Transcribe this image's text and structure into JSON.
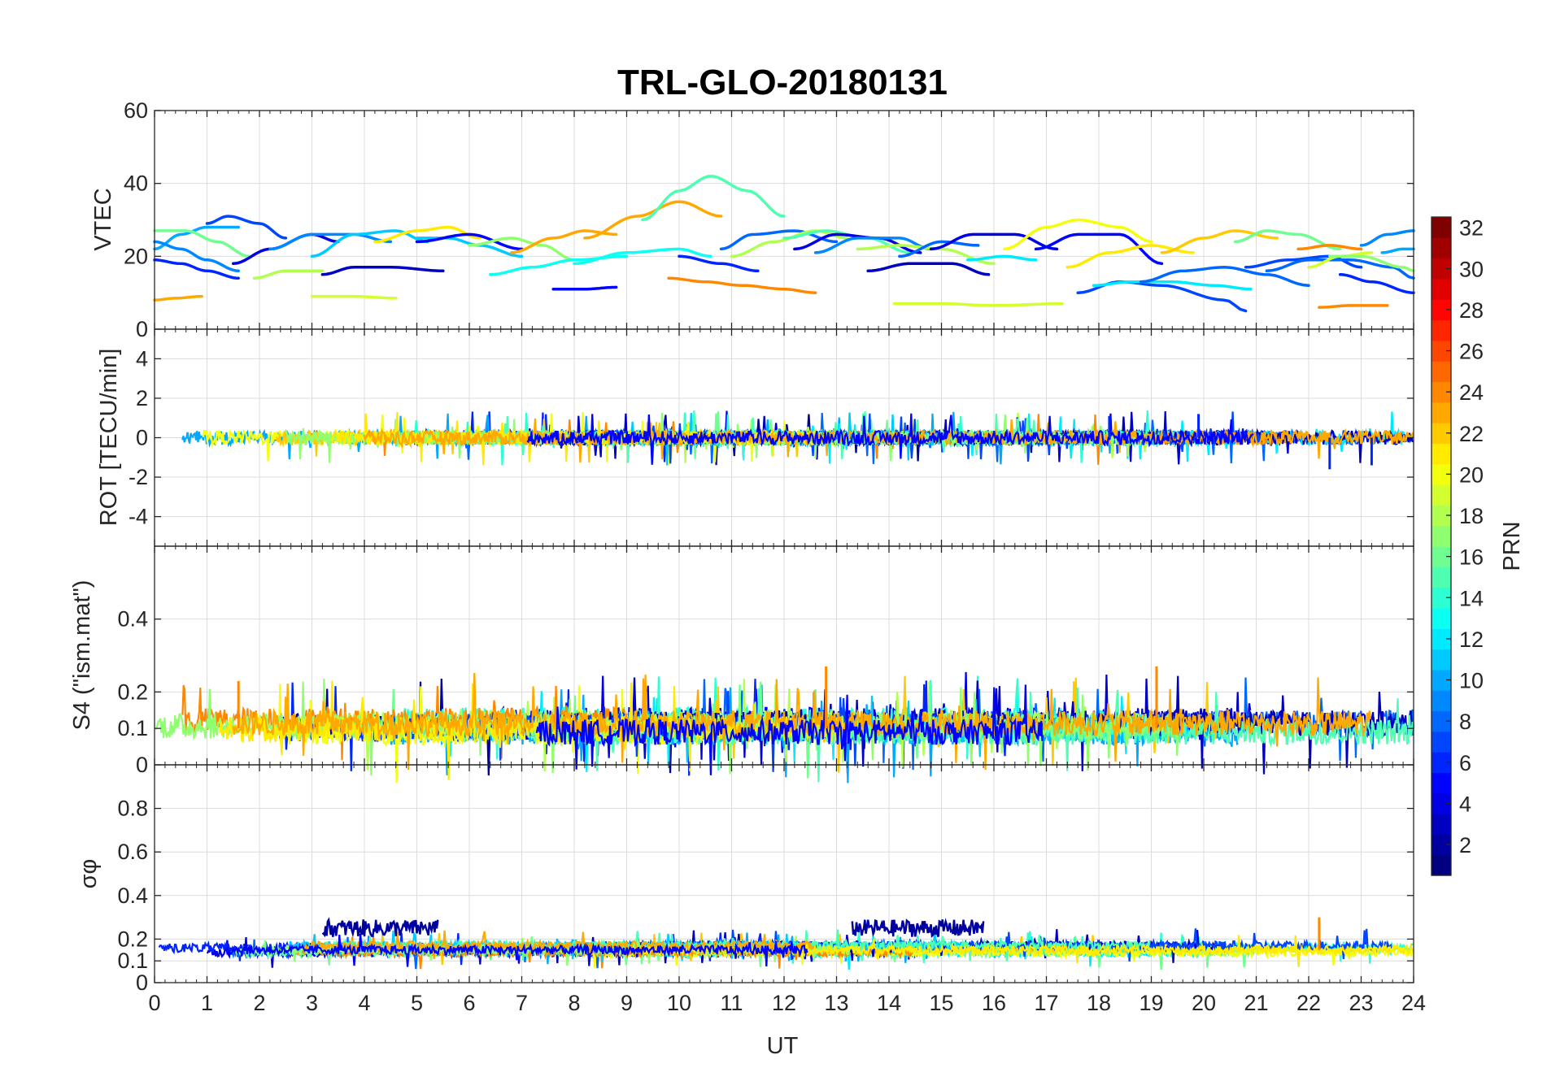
{
  "chart_data": {
    "type": "line",
    "title": "TRL-GLO-20180131",
    "xlabel": "UT",
    "x_ticks": [
      "0",
      "1",
      "2",
      "3",
      "4",
      "5",
      "6",
      "7",
      "8",
      "9",
      "10",
      "11",
      "12",
      "13",
      "14",
      "15",
      "16",
      "17",
      "18",
      "19",
      "20",
      "21",
      "22",
      "23",
      "24"
    ],
    "xlim": [
      0,
      24
    ],
    "panels": [
      {
        "id": "vtec",
        "ylabel": "VTEC",
        "ylim": [
          0,
          60
        ],
        "yticks": [
          "0",
          "20",
          "40",
          "60"
        ],
        "ytick_values": [
          0,
          20,
          40,
          60
        ]
      },
      {
        "id": "rot",
        "ylabel": "ROT [TECU/min]",
        "ylim": [
          -5.5,
          5.5
        ],
        "yticks": [
          "-4",
          "-2",
          "0",
          "2",
          "4"
        ],
        "ytick_values": [
          -4,
          -2,
          0,
          2,
          4
        ]
      },
      {
        "id": "s4",
        "ylabel": "S4 (\"ism.mat\")",
        "ylim": [
          0,
          0.6
        ],
        "yticks": [
          "0",
          "0.1",
          "0.2",
          "0.4"
        ],
        "ytick_values": [
          0,
          0.1,
          0.2,
          0.4
        ]
      },
      {
        "id": "sigma",
        "ylabel": "σφ",
        "ylim": [
          0,
          1
        ],
        "yticks": [
          "0",
          "0.1",
          "0.2",
          "0.4",
          "0.6",
          "0.8"
        ],
        "ytick_values": [
          0,
          0.1,
          0.2,
          0.4,
          0.6,
          0.8
        ]
      }
    ],
    "colorbar": {
      "label": "PRN",
      "range": [
        1,
        32
      ],
      "ticks": [
        "2",
        "4",
        "6",
        "8",
        "10",
        "12",
        "14",
        "16",
        "18",
        "20",
        "22",
        "24",
        "26",
        "28",
        "30",
        "32"
      ],
      "colormap": "jet"
    },
    "vtec_series": [
      {
        "prn": 7,
        "x": [
          1.0,
          1.4,
          2.0,
          2.5
        ],
        "y": [
          29,
          31,
          29,
          25
        ]
      },
      {
        "prn": 10,
        "x": [
          0,
          0.5,
          1.0,
          1.6
        ],
        "y": [
          22,
          26,
          28,
          28
        ]
      },
      {
        "prn": 16,
        "x": [
          0,
          0.6,
          1.2,
          1.8
        ],
        "y": [
          27,
          27,
          24,
          20
        ]
      },
      {
        "prn": 9,
        "x": [
          0,
          0.5,
          1.0,
          1.6
        ],
        "y": [
          24,
          22,
          19,
          16
        ]
      },
      {
        "prn": 6,
        "x": [
          0,
          0.5,
          1.0,
          1.6
        ],
        "y": [
          19,
          18,
          16,
          14
        ]
      },
      {
        "prn": 23,
        "x": [
          0,
          0.4,
          0.9
        ],
        "y": [
          8,
          8.5,
          9
        ]
      },
      {
        "prn": 4,
        "x": [
          1.5,
          2.2,
          3.0,
          3.5
        ],
        "y": [
          18,
          22,
          26,
          24
        ]
      },
      {
        "prn": 9,
        "x": [
          2.2,
          3.0,
          3.8,
          4.5
        ],
        "y": [
          22,
          26,
          26,
          24
        ]
      },
      {
        "prn": 18,
        "x": [
          1.9,
          2.5,
          3.2
        ],
        "y": [
          14,
          16,
          16
        ]
      },
      {
        "prn": 19,
        "x": [
          3.0,
          3.8,
          4.6
        ],
        "y": [
          9,
          9,
          8.5
        ]
      },
      {
        "prn": 3,
        "x": [
          3.2,
          3.8,
          4.5,
          5.5
        ],
        "y": [
          15,
          17,
          17,
          16
        ]
      },
      {
        "prn": 11,
        "x": [
          3.0,
          3.8,
          4.6,
          5.2
        ],
        "y": [
          20,
          26,
          27,
          24
        ]
      },
      {
        "prn": 21,
        "x": [
          4.2,
          5.0,
          5.6,
          6.2
        ],
        "y": [
          24,
          27,
          28,
          25
        ]
      },
      {
        "prn": 11,
        "x": [
          5.0,
          5.6,
          6.2,
          7.0
        ],
        "y": [
          25,
          25,
          23,
          20
        ]
      },
      {
        "prn": 5,
        "x": [
          5.0,
          6.0,
          7.0
        ],
        "y": [
          24,
          26,
          22
        ]
      },
      {
        "prn": 17,
        "x": [
          6.0,
          6.8,
          7.4,
          8.0
        ],
        "y": [
          23,
          25,
          23,
          19
        ]
      },
      {
        "prn": 13,
        "x": [
          6.4,
          7.2,
          8.0,
          9.0
        ],
        "y": [
          15,
          17,
          19,
          20
        ]
      },
      {
        "prn": 23,
        "x": [
          6.8,
          7.6,
          8.2,
          8.8
        ],
        "y": [
          21,
          25,
          27,
          26
        ]
      },
      {
        "prn": 5,
        "x": [
          7.6,
          8.2,
          8.8
        ],
        "y": [
          11,
          11,
          11.5
        ]
      },
      {
        "prn": 13,
        "x": [
          8.0,
          9.0,
          10.0,
          10.6
        ],
        "y": [
          18,
          21,
          22,
          20
        ]
      },
      {
        "prn": 23,
        "x": [
          8.2,
          9.2,
          10.0,
          10.8
        ],
        "y": [
          25,
          31,
          35,
          31
        ]
      },
      {
        "prn": 15,
        "x": [
          9.3,
          10.0,
          10.6,
          11.3,
          12.0
        ],
        "y": [
          30,
          38,
          42,
          38,
          31
        ]
      },
      {
        "prn": 24,
        "x": [
          9.8,
          10.5,
          11.2,
          12.0,
          12.6
        ],
        "y": [
          14,
          13,
          12,
          11,
          10
        ]
      },
      {
        "prn": 8,
        "x": [
          10.8,
          11.4,
          12.2,
          13.0
        ],
        "y": [
          22,
          26,
          27,
          24
        ]
      },
      {
        "prn": 18,
        "x": [
          11.0,
          11.8,
          12.6,
          13.2
        ],
        "y": [
          20,
          24,
          27,
          25
        ]
      },
      {
        "prn": 6,
        "x": [
          10.0,
          10.8,
          11.5
        ],
        "y": [
          20,
          18,
          16
        ]
      },
      {
        "prn": 15,
        "x": [
          12.0,
          12.8,
          13.6,
          14.4
        ],
        "y": [
          25,
          27,
          25,
          21
        ]
      },
      {
        "prn": 4,
        "x": [
          12.2,
          13.0,
          13.8,
          14.6
        ],
        "y": [
          22,
          26,
          25,
          21
        ]
      },
      {
        "prn": 9,
        "x": [
          12.6,
          13.4,
          14.2,
          14.8
        ],
        "y": [
          21,
          25,
          25,
          22
        ]
      },
      {
        "prn": 3,
        "x": [
          13.6,
          14.4,
          15.2,
          15.9
        ],
        "y": [
          16,
          18,
          18,
          15
        ]
      },
      {
        "prn": 18,
        "x": [
          13.4,
          14.2,
          15.0,
          16.0
        ],
        "y": [
          22,
          23,
          22,
          18
        ]
      },
      {
        "prn": 19,
        "x": [
          14.1,
          15.0,
          16.0,
          17.3
        ],
        "y": [
          7,
          7,
          6.5,
          7
        ]
      },
      {
        "prn": 8,
        "x": [
          14.2,
          15.0,
          15.7
        ],
        "y": [
          20,
          24,
          23
        ]
      },
      {
        "prn": 4,
        "x": [
          14.8,
          15.6,
          16.4,
          17.2
        ],
        "y": [
          22,
          26,
          26,
          22
        ]
      },
      {
        "prn": 12,
        "x": [
          15.5,
          16.2,
          16.8
        ],
        "y": [
          19,
          20,
          19
        ]
      },
      {
        "prn": 20,
        "x": [
          16.2,
          17.0,
          17.6,
          18.4,
          19.0
        ],
        "y": [
          22,
          28,
          30,
          28,
          24
        ]
      },
      {
        "prn": 5,
        "x": [
          16.8,
          17.6,
          18.4,
          19.2
        ],
        "y": [
          22,
          26,
          26,
          18
        ]
      },
      {
        "prn": 21,
        "x": [
          17.4,
          18.2,
          19.0,
          19.8
        ],
        "y": [
          17,
          21,
          23,
          21
        ]
      },
      {
        "prn": 7,
        "x": [
          17.6,
          18.4,
          19.2,
          20.4,
          20.8
        ],
        "y": [
          10,
          13,
          12,
          8,
          5
        ]
      },
      {
        "prn": 12,
        "x": [
          17.9,
          18.6,
          19.4,
          20.2,
          20.9
        ],
        "y": [
          12,
          13,
          13,
          12,
          11
        ]
      },
      {
        "prn": 8,
        "x": [
          18.8,
          19.6,
          20.4,
          21.2,
          22.0
        ],
        "y": [
          13,
          16,
          17,
          15,
          12
        ]
      },
      {
        "prn": 22,
        "x": [
          19.2,
          20.0,
          20.6,
          21.4
        ],
        "y": [
          21,
          25,
          27,
          25
        ]
      },
      {
        "prn": 16,
        "x": [
          20.6,
          21.2,
          21.8,
          22.6
        ],
        "y": [
          24,
          27,
          26,
          22
        ]
      },
      {
        "prn": 7,
        "x": [
          20.8,
          21.6,
          22.4,
          23.0
        ],
        "y": [
          17,
          19,
          20,
          17
        ]
      },
      {
        "prn": 8,
        "x": [
          21.2,
          22.0,
          22.8,
          23.6,
          24.0
        ],
        "y": [
          16,
          19,
          19,
          17,
          14
        ]
      },
      {
        "prn": 24,
        "x": [
          21.8,
          22.4,
          23.0
        ],
        "y": [
          22,
          23,
          22
        ]
      },
      {
        "prn": 19,
        "x": [
          22.0,
          22.6,
          23.2
        ],
        "y": [
          17,
          20,
          21
        ]
      },
      {
        "prn": 17,
        "x": [
          22.4,
          23.0,
          23.8,
          24.0
        ],
        "y": [
          20,
          20,
          17,
          16
        ]
      },
      {
        "prn": 9,
        "x": [
          23.0,
          23.5,
          24.0
        ],
        "y": [
          23,
          26,
          27
        ]
      },
      {
        "prn": 10,
        "x": [
          23.4,
          23.8,
          24.0
        ],
        "y": [
          21,
          22,
          22
        ]
      },
      {
        "prn": 24,
        "x": [
          22.2,
          22.8,
          23.5
        ],
        "y": [
          6,
          6.5,
          6.5
        ]
      },
      {
        "prn": 6,
        "x": [
          22.6,
          23.2,
          24.0
        ],
        "y": [
          15,
          13,
          10
        ]
      }
    ],
    "rot_summary": {
      "baseline": 0,
      "typical_range": [
        -1,
        1
      ],
      "notable_dips": [
        {
          "x": 23.2,
          "y": -1.4
        },
        {
          "x": 22.4,
          "y": -1.6
        }
      ],
      "notable_spikes": [
        {
          "x": 19.9,
          "y": 1.2
        },
        {
          "x": 18.2,
          "y": 1.1
        }
      ]
    },
    "s4_summary": {
      "typical_range": [
        0.05,
        0.2
      ],
      "notable_peaks": [
        {
          "x": 12.8,
          "y": 0.27
        },
        {
          "x": 19.1,
          "y": 0.27
        },
        {
          "x": 1.6,
          "y": 0.23
        }
      ]
    },
    "sigma_summary": {
      "baseline": 0.15,
      "enhanced_intervals": [
        {
          "x_start": 3.2,
          "x_end": 5.4,
          "level": 0.25,
          "prn": 2
        },
        {
          "x_start": 13.3,
          "x_end": 15.8,
          "level": 0.25,
          "prn": 2
        }
      ],
      "notable_peaks": [
        {
          "x": 22.2,
          "y": 0.3
        }
      ]
    }
  }
}
